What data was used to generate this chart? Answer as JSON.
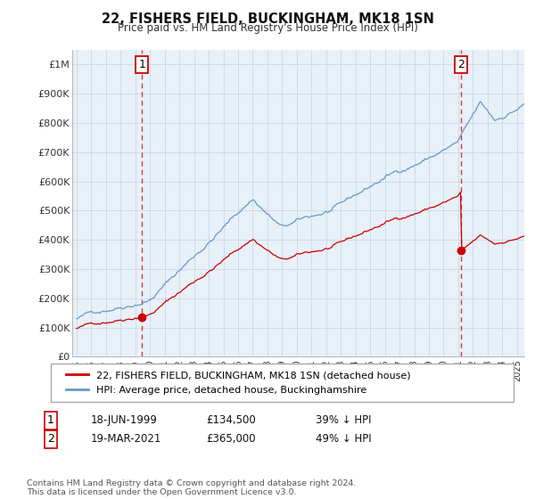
{
  "title": "22, FISHERS FIELD, BUCKINGHAM, MK18 1SN",
  "subtitle": "Price paid vs. HM Land Registry's House Price Index (HPI)",
  "ylabel_ticks": [
    "£0",
    "£100K",
    "£200K",
    "£300K",
    "£400K",
    "£500K",
    "£600K",
    "£700K",
    "£800K",
    "£900K",
    "£1M"
  ],
  "ytick_vals": [
    0,
    100000,
    200000,
    300000,
    400000,
    500000,
    600000,
    700000,
    800000,
    900000,
    1000000
  ],
  "xlim": [
    1994.7,
    2025.5
  ],
  "ylim": [
    0,
    1050000
  ],
  "sale1_x": 1999.46,
  "sale1_y": 134500,
  "sale1_label": "1",
  "sale2_x": 2021.21,
  "sale2_y": 365000,
  "sale2_label": "2",
  "legend_line1": "22, FISHERS FIELD, BUCKINGHAM, MK18 1SN (detached house)",
  "legend_line2": "HPI: Average price, detached house, Buckinghamshire",
  "table_row1_num": "1",
  "table_row1_date": "18-JUN-1999",
  "table_row1_price": "£134,500",
  "table_row1_hpi": "39% ↓ HPI",
  "table_row2_num": "2",
  "table_row2_date": "19-MAR-2021",
  "table_row2_price": "£365,000",
  "table_row2_hpi": "49% ↓ HPI",
  "footnote": "Contains HM Land Registry data © Crown copyright and database right 2024.\nThis data is licensed under the Open Government Licence v3.0.",
  "property_color": "#cc0000",
  "hpi_color": "#6699cc",
  "background_color": "#ffffff",
  "plot_bg_color": "#e8f0f8",
  "grid_color": "#c8d8e8"
}
